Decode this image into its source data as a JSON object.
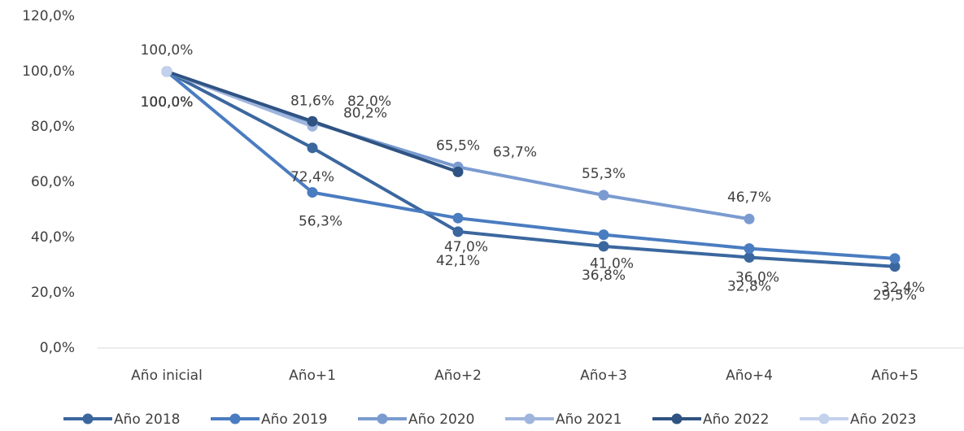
{
  "chart_data": {
    "type": "line",
    "categories": [
      "Año inicial",
      "Año+1",
      "Año+2",
      "Año+3",
      "Año+4",
      "Año+5"
    ],
    "ylim": [
      0,
      120
    ],
    "yticks": [
      {
        "value": 0,
        "label": "0,0%"
      },
      {
        "value": 20,
        "label": "20,0%"
      },
      {
        "value": 40,
        "label": "40,0%"
      },
      {
        "value": 60,
        "label": "60,0%"
      },
      {
        "value": 80,
        "label": "80,0%"
      },
      {
        "value": 100,
        "label": "100,0%"
      },
      {
        "value": 120,
        "label": "120,0%"
      }
    ],
    "grid": false,
    "legend": "bottom",
    "series": [
      {
        "name": "Año 2018",
        "color": "#3b679e",
        "values": [
          100,
          72.4,
          42.1,
          36.8,
          32.8,
          29.5
        ],
        "value_labels": [
          "100,0%",
          "72,4%",
          "42,1%",
          "36,8%",
          "32,8%",
          "29,5%"
        ]
      },
      {
        "name": "Año 2019",
        "color": "#4a7cc0",
        "values": [
          100,
          56.3,
          47.0,
          41.0,
          36.0,
          32.4
        ],
        "value_labels": [
          "100,0%",
          "56,3%",
          "47,0%",
          "41,0%",
          "36,0%",
          "32,4%"
        ]
      },
      {
        "name": "Año 2020",
        "color": "#7a9bd0",
        "values": [
          100,
          81.6,
          65.5,
          55.3,
          46.7,
          null
        ],
        "value_labels": [
          "100,0%",
          "81,6%",
          "65,5%",
          "55,3%",
          "46,7%",
          null
        ]
      },
      {
        "name": "Año 2021",
        "color": "#9fb5de",
        "values": [
          100,
          80.2,
          null,
          null,
          null,
          null
        ],
        "value_labels": [
          "100,0%",
          "80,2%",
          null,
          null,
          null,
          null
        ]
      },
      {
        "name": "Año 2022",
        "color": "#2f5382",
        "values": [
          100,
          82.0,
          63.7,
          null,
          null,
          null
        ],
        "value_labels": [
          "100,0%",
          "82,0%",
          "63,7%",
          null,
          null,
          null
        ]
      },
      {
        "name": "Año 2023",
        "color": "#c3d1ec",
        "values": [
          100,
          null,
          null,
          null,
          null,
          null
        ],
        "value_labels": [
          "100,0%",
          null,
          null,
          null,
          null,
          null
        ]
      }
    ]
  }
}
